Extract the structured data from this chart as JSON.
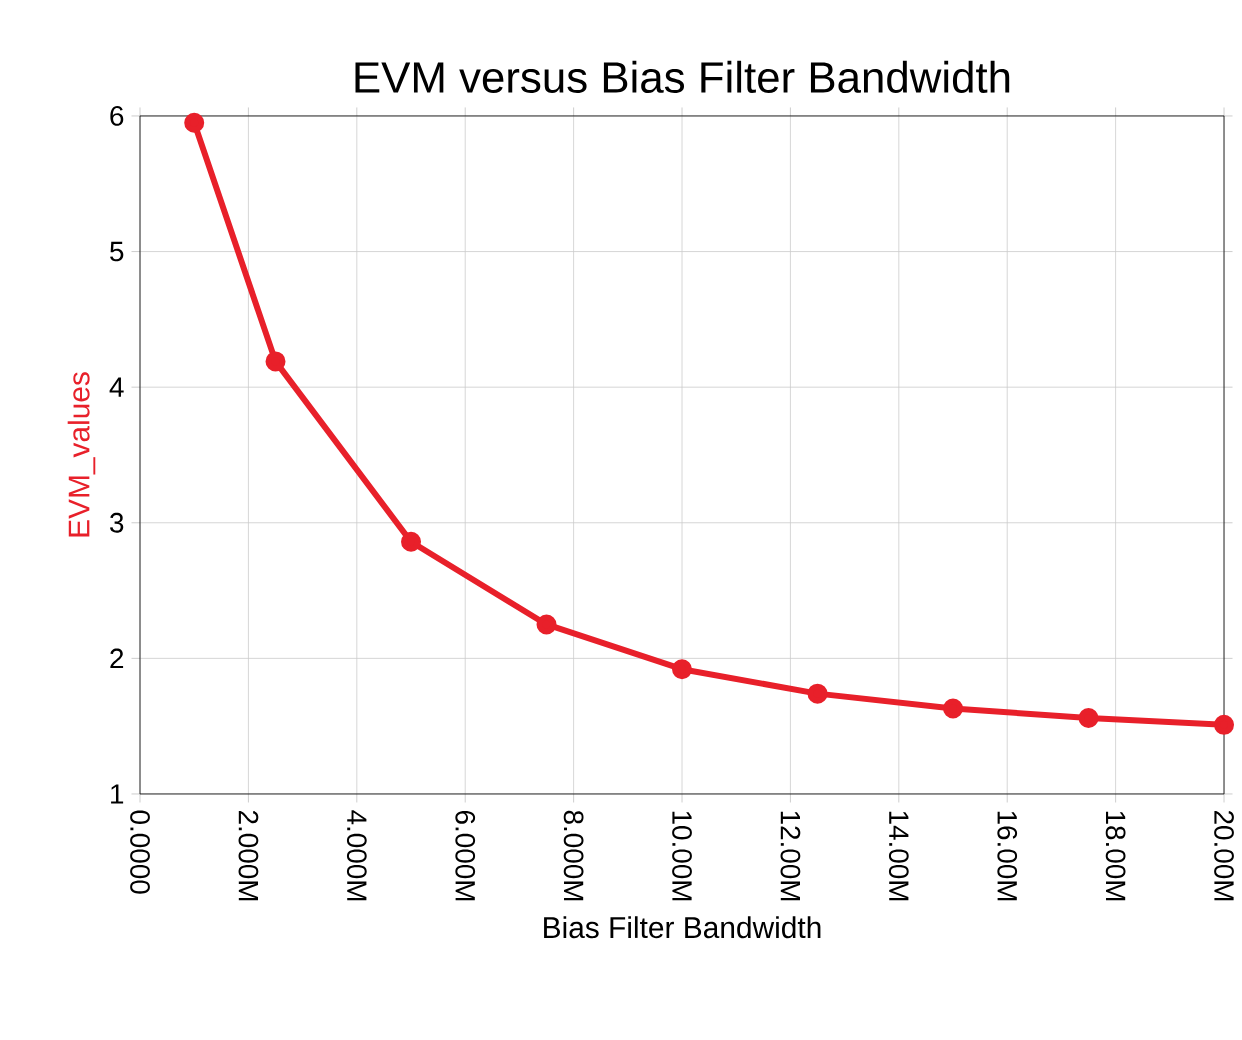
{
  "chart_data": {
    "type": "line",
    "title": "EVM versus Bias Filter Bandwidth",
    "xlabel": "Bias Filter Bandwidth",
    "ylabel": "EVM_values",
    "x": [
      1000000,
      2500000,
      5000000,
      7500000,
      10000000,
      12500000,
      15000000,
      17500000,
      20000000
    ],
    "series": [
      {
        "color": "#e8202a",
        "values": [
          5.95,
          4.19,
          2.86,
          2.25,
          1.92,
          1.74,
          1.63,
          1.56,
          1.51
        ]
      }
    ],
    "xlim": [
      0,
      20000000
    ],
    "ylim": [
      1,
      6
    ],
    "xticks": [
      {
        "value": 0,
        "label": "0.0000"
      },
      {
        "value": 2000000,
        "label": "2.000M"
      },
      {
        "value": 4000000,
        "label": "4.000M"
      },
      {
        "value": 6000000,
        "label": "6.000M"
      },
      {
        "value": 8000000,
        "label": "8.000M"
      },
      {
        "value": 10000000,
        "label": "10.00M"
      },
      {
        "value": 12000000,
        "label": "12.00M"
      },
      {
        "value": 14000000,
        "label": "14.00M"
      },
      {
        "value": 16000000,
        "label": "16.00M"
      },
      {
        "value": 18000000,
        "label": "18.00M"
      },
      {
        "value": 20000000,
        "label": "20.00M"
      }
    ],
    "yticks": [
      1,
      2,
      3,
      4,
      5,
      6
    ],
    "grid": true,
    "marker": "circle",
    "line_style": "solid"
  }
}
